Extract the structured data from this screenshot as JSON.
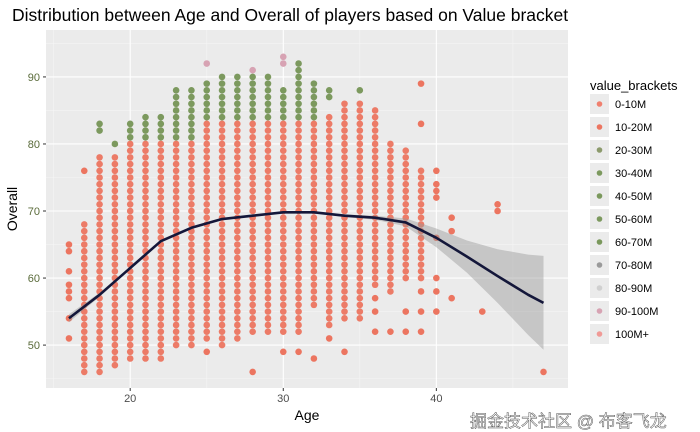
{
  "chart_data": {
    "type": "scatter",
    "title": "Distribution between Age and Overall of players based on Value bracket",
    "xlabel": "Age",
    "ylabel": "Overall",
    "xlim": [
      14.5,
      48.6
    ],
    "ylim": [
      43.6,
      97
    ],
    "xticks": [
      20,
      30,
      40
    ],
    "yticks": [
      50,
      60,
      70,
      80,
      90
    ],
    "grid": true,
    "legend_position": "right",
    "legend_title": "value_brackets",
    "legend": [
      {
        "label": "0-10M",
        "color": "#f0806f"
      },
      {
        "label": "10-20M",
        "color": "#ec7560"
      },
      {
        "label": "20-30M",
        "color": "#8c9a6c"
      },
      {
        "label": "30-40M",
        "color": "#7c995e"
      },
      {
        "label": "40-50M",
        "color": "#7a985c"
      },
      {
        "label": "50-60M",
        "color": "#7c995e"
      },
      {
        "label": "60-70M",
        "color": "#7a985c"
      },
      {
        "label": "70-80M",
        "color": "#9a9a9a"
      },
      {
        "label": "80-90M",
        "color": "#d0d0d0"
      },
      {
        "label": "90-100M",
        "color": "#d7a3b3"
      },
      {
        "label": "100M+",
        "color": "#f09a96"
      }
    ],
    "columns": [
      {
        "age": 17,
        "red": [
          46,
          68
        ],
        "green": null
      },
      {
        "age": 18,
        "red": [
          46,
          78
        ],
        "green": [
          82,
          83
        ]
      },
      {
        "age": 19,
        "red": [
          47,
          78
        ],
        "green": [
          80,
          80
        ]
      },
      {
        "age": 20,
        "red": [
          48,
          80
        ],
        "green": [
          81,
          83
        ]
      },
      {
        "age": 21,
        "red": [
          48,
          80
        ],
        "green": [
          81,
          84
        ]
      },
      {
        "age": 22,
        "red": [
          48,
          80
        ],
        "green": [
          81,
          84
        ]
      },
      {
        "age": 23,
        "red": [
          50,
          80
        ],
        "green": [
          81,
          88
        ]
      },
      {
        "age": 24,
        "red": [
          50,
          80
        ],
        "green": [
          81,
          88
        ]
      },
      {
        "age": 25,
        "red": [
          51,
          83
        ],
        "green": [
          84,
          89
        ]
      },
      {
        "age": 26,
        "red": [
          50,
          83
        ],
        "green": [
          84,
          90
        ]
      },
      {
        "age": 27,
        "red": [
          51,
          83
        ],
        "green": [
          84,
          90
        ]
      },
      {
        "age": 28,
        "red": [
          52,
          83
        ],
        "green": [
          84,
          90
        ]
      },
      {
        "age": 29,
        "red": [
          52,
          83
        ],
        "green": [
          84,
          90
        ]
      },
      {
        "age": 30,
        "red": [
          52,
          83
        ],
        "green": [
          84,
          88
        ]
      },
      {
        "age": 31,
        "red": [
          52,
          83
        ],
        "green": [
          84,
          92
        ]
      },
      {
        "age": 32,
        "red": [
          56,
          83
        ],
        "green": [
          84,
          89
        ]
      },
      {
        "age": 33,
        "red": [
          53,
          84
        ],
        "green": [
          87,
          88
        ]
      },
      {
        "age": 34,
        "red": [
          54,
          86
        ],
        "green": null
      },
      {
        "age": 35,
        "red": [
          54,
          86
        ],
        "green": [
          88,
          88
        ]
      },
      {
        "age": 36,
        "red": [
          59,
          85
        ],
        "green": null
      },
      {
        "age": 37,
        "red": [
          58,
          80
        ],
        "green": null
      },
      {
        "age": 38,
        "red": [
          60,
          79
        ],
        "green": null
      },
      {
        "age": 39,
        "red": [
          60,
          76
        ],
        "green": null
      }
    ],
    "outliers": [
      [
        16,
        65
      ],
      [
        16,
        64
      ],
      [
        16,
        61
      ],
      [
        16,
        59
      ],
      [
        16,
        58
      ],
      [
        16,
        57
      ],
      [
        16,
        54
      ],
      [
        16,
        51
      ],
      [
        17,
        76
      ],
      [
        25,
        49
      ],
      [
        25,
        92
      ],
      [
        28,
        46
      ],
      [
        28,
        91
      ],
      [
        30,
        49
      ],
      [
        30,
        93
      ],
      [
        30,
        92
      ],
      [
        31,
        49
      ],
      [
        32,
        48
      ],
      [
        33,
        51
      ],
      [
        34,
        49
      ],
      [
        36,
        57
      ],
      [
        36,
        55
      ],
      [
        36,
        52
      ],
      [
        37,
        52
      ],
      [
        38,
        55
      ],
      [
        38,
        52
      ],
      [
        39,
        89
      ],
      [
        39,
        83
      ],
      [
        39,
        58
      ],
      [
        39,
        55
      ],
      [
        39,
        52
      ],
      [
        40,
        76
      ],
      [
        40,
        74
      ],
      [
        40,
        73
      ],
      [
        40,
        72
      ],
      [
        40,
        66
      ],
      [
        40,
        60
      ],
      [
        40,
        58
      ],
      [
        40,
        55
      ],
      [
        41,
        69
      ],
      [
        41,
        67
      ],
      [
        41,
        57
      ],
      [
        43,
        55
      ],
      [
        44,
        71
      ],
      [
        44,
        70
      ],
      [
        47,
        46
      ]
    ],
    "smooth": {
      "x": [
        16,
        18,
        20,
        22,
        24,
        26,
        28,
        30,
        32,
        34,
        36,
        38,
        40,
        42,
        44,
        46,
        47
      ],
      "y": [
        54,
        57.5,
        61.5,
        65.5,
        67.5,
        68.8,
        69.3,
        69.8,
        69.8,
        69.3,
        69,
        68.3,
        66,
        63.2,
        60.3,
        57.5,
        56.3
      ],
      "upper": [
        54.6,
        57.8,
        61.7,
        65.7,
        67.7,
        68.9,
        69.4,
        69.9,
        69.9,
        69.5,
        69.3,
        68.9,
        67.4,
        65.6,
        64.3,
        63.5,
        63.3
      ],
      "lower": [
        53.4,
        57.2,
        61.3,
        65.3,
        67.3,
        68.7,
        69.2,
        69.7,
        69.7,
        69.1,
        68.7,
        67.7,
        64.6,
        60.8,
        56.3,
        51.5,
        49.3
      ]
    }
  },
  "watermark": "掘金技术社区 @ 布客飞龙"
}
